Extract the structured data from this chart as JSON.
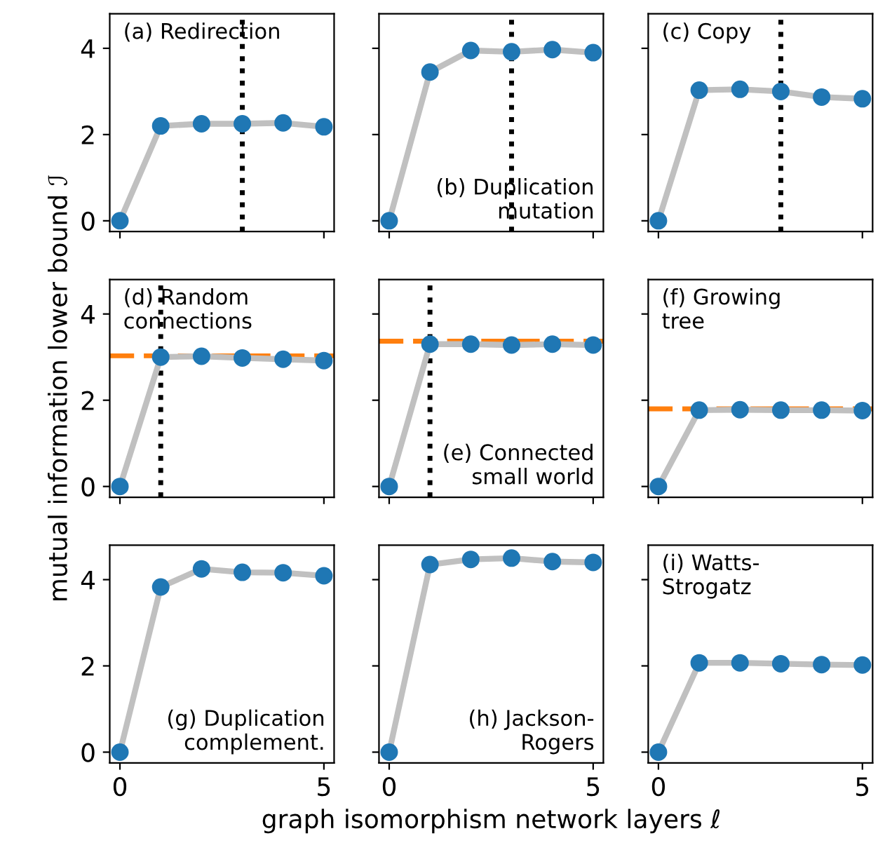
{
  "chart_data": [
    {
      "type": "line",
      "x": [
        0,
        1,
        2,
        3,
        4,
        5
      ],
      "series": [
        {
          "color": "#1f77b4",
          "values": [
            0,
            2.2,
            2.25,
            2.25,
            2.27,
            2.18
          ]
        }
      ],
      "xlim": [
        -0.25,
        5.25
      ],
      "ylim": [
        -0.25,
        4.8
      ],
      "xticks": [
        0,
        5
      ],
      "yticks": [
        0,
        2,
        4
      ],
      "marker": "circle",
      "tick_labels": "y",
      "ref_lines": [
        {
          "axis": "x",
          "value": 3,
          "color": "#000000",
          "line_style": "dotted"
        }
      ],
      "annotations": [
        "(a) Redirection"
      ]
    },
    {
      "type": "line",
      "x": [
        0,
        1,
        2,
        3,
        4,
        5
      ],
      "series": [
        {
          "color": "#1f77b4",
          "values": [
            0,
            3.45,
            3.95,
            3.92,
            3.97,
            3.9
          ]
        }
      ],
      "xlim": [
        -0.25,
        5.25
      ],
      "ylim": [
        -0.25,
        4.8
      ],
      "xticks": [
        0,
        5
      ],
      "yticks": [
        0,
        2,
        4
      ],
      "marker": "circle",
      "tick_labels": false,
      "ref_lines": [
        {
          "axis": "x",
          "value": 3,
          "color": "#000000",
          "line_style": "dotted"
        }
      ],
      "annotations": [
        "(b) Duplication\nmutation"
      ]
    },
    {
      "type": "line",
      "x": [
        0,
        1,
        2,
        3,
        4,
        5
      ],
      "series": [
        {
          "color": "#1f77b4",
          "values": [
            0,
            3.03,
            3.05,
            3.0,
            2.87,
            2.83
          ]
        }
      ],
      "xlim": [
        -0.25,
        5.25
      ],
      "ylim": [
        -0.25,
        4.8
      ],
      "xticks": [
        0,
        5
      ],
      "yticks": [
        0,
        2,
        4
      ],
      "marker": "circle",
      "tick_labels": false,
      "ref_lines": [
        {
          "axis": "x",
          "value": 3,
          "color": "#000000",
          "line_style": "dotted"
        }
      ],
      "annotations": [
        "(c) Copy"
      ]
    },
    {
      "type": "line",
      "x": [
        0,
        1,
        2,
        3,
        4,
        5
      ],
      "series": [
        {
          "color": "#1f77b4",
          "values": [
            0,
            3.0,
            3.02,
            2.98,
            2.95,
            2.92
          ]
        }
      ],
      "xlim": [
        -0.25,
        5.25
      ],
      "ylim": [
        -0.25,
        4.8
      ],
      "xticks": [
        0,
        5
      ],
      "yticks": [
        0,
        2,
        4
      ],
      "marker": "circle",
      "tick_labels": "y",
      "ylabel": "mutual information lower bound ℐ",
      "ref_lines": [
        {
          "axis": "x",
          "value": 1,
          "color": "#000000",
          "line_style": "dotted"
        },
        {
          "axis": "y",
          "value": 3.03,
          "color": "#ff7f0e",
          "line_style": "dashed"
        }
      ],
      "annotations": [
        "(d) Random\nconnections"
      ]
    },
    {
      "type": "line",
      "x": [
        0,
        1,
        2,
        3,
        4,
        5
      ],
      "series": [
        {
          "color": "#1f77b4",
          "values": [
            0,
            3.3,
            3.3,
            3.28,
            3.3,
            3.28
          ]
        }
      ],
      "xlim": [
        -0.25,
        5.25
      ],
      "ylim": [
        -0.25,
        4.8
      ],
      "xticks": [
        0,
        5
      ],
      "yticks": [
        0,
        2,
        4
      ],
      "marker": "circle",
      "tick_labels": false,
      "ref_lines": [
        {
          "axis": "x",
          "value": 1,
          "color": "#000000",
          "line_style": "dotted"
        },
        {
          "axis": "y",
          "value": 3.37,
          "color": "#ff7f0e",
          "line_style": "dashed"
        }
      ],
      "annotations": [
        "(e) Connected\nsmall world"
      ]
    },
    {
      "type": "line",
      "x": [
        0,
        1,
        2,
        3,
        4,
        5
      ],
      "series": [
        {
          "color": "#1f77b4",
          "values": [
            0,
            1.77,
            1.78,
            1.77,
            1.77,
            1.76
          ]
        }
      ],
      "xlim": [
        -0.25,
        5.25
      ],
      "ylim": [
        -0.25,
        4.8
      ],
      "xticks": [
        0,
        5
      ],
      "yticks": [
        0,
        2,
        4
      ],
      "marker": "circle",
      "tick_labels": false,
      "ref_lines": [
        {
          "axis": "y",
          "value": 1.8,
          "color": "#ff7f0e",
          "line_style": "dashed"
        }
      ],
      "annotations": [
        "(f) Growing\ntree"
      ]
    },
    {
      "type": "line",
      "x": [
        0,
        1,
        2,
        3,
        4,
        5
      ],
      "series": [
        {
          "color": "#1f77b4",
          "values": [
            0,
            3.83,
            4.25,
            4.17,
            4.16,
            4.09
          ]
        }
      ],
      "xlim": [
        -0.25,
        5.25
      ],
      "ylim": [
        -0.25,
        4.8
      ],
      "xticks": [
        0,
        5
      ],
      "yticks": [
        0,
        2,
        4
      ],
      "marker": "circle",
      "annotations": [
        "(g) Duplication\ncomplement."
      ]
    },
    {
      "type": "line",
      "x": [
        0,
        1,
        2,
        3,
        4,
        5
      ],
      "series": [
        {
          "color": "#1f77b4",
          "values": [
            0,
            4.35,
            4.47,
            4.5,
            4.42,
            4.4
          ]
        }
      ],
      "xlim": [
        -0.25,
        5.25
      ],
      "ylim": [
        -0.25,
        4.8
      ],
      "xticks": [
        0,
        5
      ],
      "yticks": [
        0,
        2,
        4
      ],
      "marker": "circle",
      "tick_labels": "x",
      "xlabel": "graph isomorphism network layers ℓ",
      "annotations": [
        "(h) Jackson-\nRogers"
      ]
    },
    {
      "type": "line",
      "x": [
        0,
        1,
        2,
        3,
        4,
        5
      ],
      "series": [
        {
          "color": "#1f77b4",
          "values": [
            0,
            2.07,
            2.07,
            2.05,
            2.03,
            2.02
          ]
        }
      ],
      "xlim": [
        -0.25,
        5.25
      ],
      "ylim": [
        -0.25,
        4.8
      ],
      "xticks": [
        0,
        5
      ],
      "yticks": [
        0,
        2,
        4
      ],
      "marker": "circle",
      "tick_labels": "x",
      "annotations": [
        "(i) Watts-\nStrogatz"
      ]
    }
  ]
}
